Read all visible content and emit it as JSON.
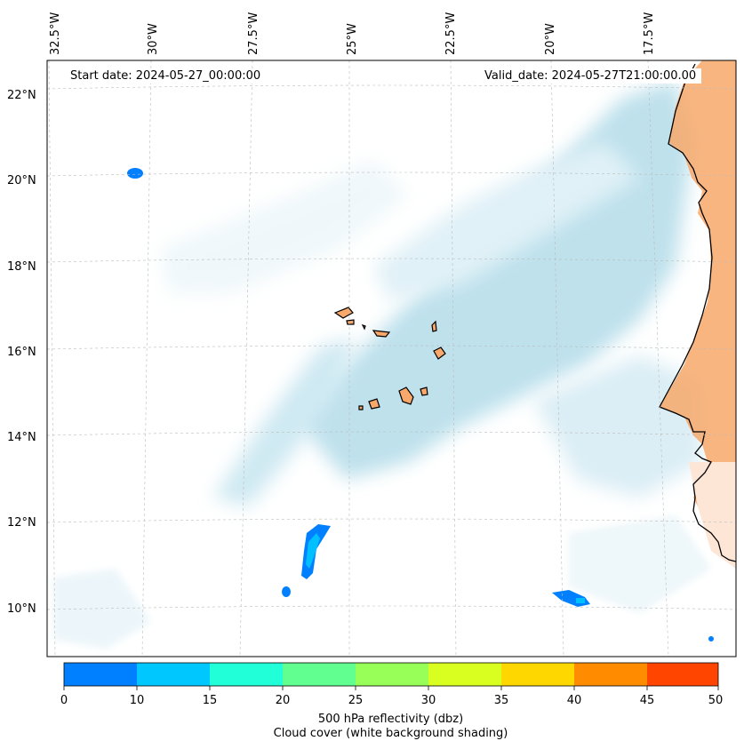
{
  "header": {
    "start_date": "Start date: 2024-05-27_00:00:00",
    "valid_date": "Valid_date: 2024-05-27T21:00:00.00"
  },
  "map": {
    "lon_labels": [
      "32.5°W",
      "30°W",
      "27.5°W",
      "25°W",
      "22.5°W",
      "20°W",
      "17.5°W"
    ],
    "lat_labels": [
      "22°N",
      "20°N",
      "18°N",
      "16°N",
      "14°N",
      "12°N",
      "10°N"
    ],
    "colors": {
      "land": "#f7a86a",
      "cloud": "#a9d7e6",
      "refl_low": "#0080ff",
      "refl_mid": "#00c0ff",
      "coast": "#000000"
    }
  },
  "colorbar": {
    "ticks": [
      "0",
      "10",
      "15",
      "20",
      "25",
      "30",
      "35",
      "40",
      "45",
      "50"
    ],
    "colors": [
      "#0080ff",
      "#00c8ff",
      "#20ffd8",
      "#60ff90",
      "#98ff58",
      "#d8ff20",
      "#ffd700",
      "#ff8c00",
      "#ff4500"
    ],
    "label": "500 hPa reflectivity (dbz)",
    "sublabel": "Cloud cover (white background shading)"
  }
}
